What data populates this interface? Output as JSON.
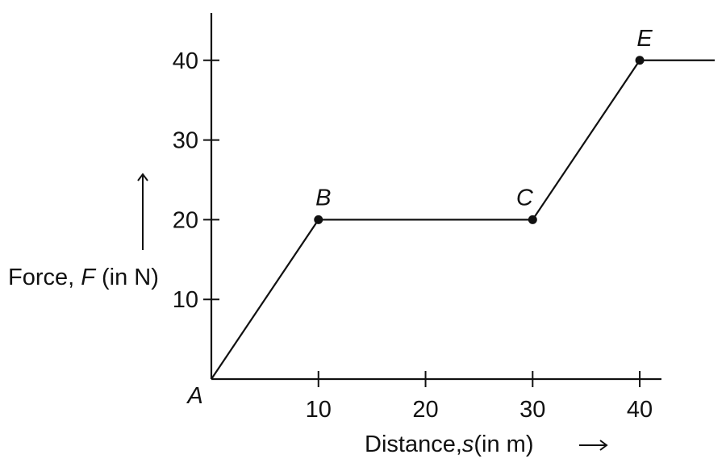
{
  "chart_data": {
    "type": "line",
    "xlabel_prefix": "Distance,",
    "xlabel_var": "s",
    "xlabel_suffix": "(in m)",
    "ylabel_prefix": "Force, ",
    "ylabel_var": "F",
    "ylabel_suffix": " (in N)",
    "origin_label": "A",
    "xlim": [
      0,
      47
    ],
    "ylim": [
      0,
      42
    ],
    "x_ticks": [
      10,
      20,
      30,
      40
    ],
    "y_ticks": [
      10,
      20,
      30,
      40
    ],
    "x_tick_labels": [
      "10",
      "20",
      "30",
      "40"
    ],
    "y_tick_labels": [
      "10",
      "20",
      "30",
      "40"
    ],
    "series": [
      {
        "points": [
          {
            "x": 0,
            "y": 0
          },
          {
            "x": 10,
            "y": 20
          },
          {
            "x": 30,
            "y": 20
          },
          {
            "x": 40,
            "y": 40
          },
          {
            "x": 47,
            "y": 40
          }
        ]
      }
    ],
    "labeled_points": [
      {
        "label": "B",
        "x": 10,
        "y": 20
      },
      {
        "label": "C",
        "x": 30,
        "y": 20
      },
      {
        "label": "E",
        "x": 40,
        "y": 40
      }
    ],
    "grid": false
  }
}
